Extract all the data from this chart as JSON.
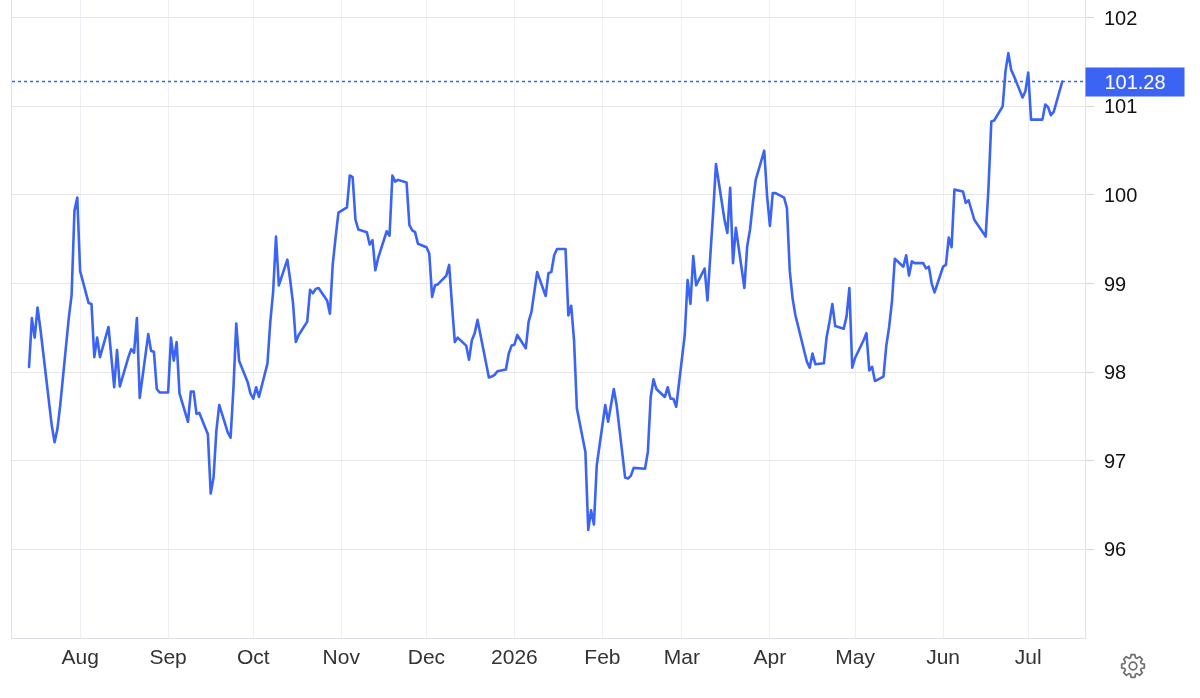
{
  "chart_data": {
    "type": "line",
    "x": [
      "2025-07-14",
      "2025-07-15",
      "2025-07-16",
      "2025-07-17",
      "2025-07-18",
      "2025-07-22",
      "2025-07-23",
      "2025-07-24",
      "2025-07-25",
      "2025-07-28",
      "2025-07-29",
      "2025-07-30",
      "2025-07-31",
      "2025-08-01",
      "2025-08-04",
      "2025-08-05",
      "2025-08-06",
      "2025-08-07",
      "2025-08-08",
      "2025-08-11",
      "2025-08-13",
      "2025-08-14",
      "2025-08-15",
      "2025-08-18",
      "2025-08-19",
      "2025-08-20",
      "2025-08-21",
      "2025-08-22",
      "2025-08-25",
      "2025-08-26",
      "2025-08-27",
      "2025-08-28",
      "2025-08-29",
      "2025-09-01",
      "2025-09-02",
      "2025-09-03",
      "2025-09-04",
      "2025-09-05",
      "2025-09-08",
      "2025-09-09",
      "2025-09-10",
      "2025-09-11",
      "2025-09-12",
      "2025-09-15",
      "2025-09-16",
      "2025-09-17",
      "2025-09-18",
      "2025-09-19",
      "2025-09-22",
      "2025-09-23",
      "2025-09-24",
      "2025-09-25",
      "2025-09-26",
      "2025-09-29",
      "2025-09-30",
      "2025-10-01",
      "2025-10-02",
      "2025-10-03",
      "2025-10-06",
      "2025-10-07",
      "2025-10-08",
      "2025-10-09",
      "2025-10-10",
      "2025-10-13",
      "2025-10-14",
      "2025-10-15",
      "2025-10-16",
      "2025-10-17",
      "2025-10-20",
      "2025-10-21",
      "2025-10-22",
      "2025-10-23",
      "2025-10-24",
      "2025-10-27",
      "2025-10-28",
      "2025-10-29",
      "2025-10-30",
      "2025-10-31",
      "2025-11-03",
      "2025-11-04",
      "2025-11-05",
      "2025-11-06",
      "2025-11-07",
      "2025-11-10",
      "2025-11-11",
      "2025-11-12",
      "2025-11-13",
      "2025-11-14",
      "2025-11-17",
      "2025-11-18",
      "2025-11-19",
      "2025-11-20",
      "2025-11-21",
      "2025-11-24",
      "2025-11-25",
      "2025-11-26",
      "2025-11-27",
      "2025-11-28",
      "2025-12-01",
      "2025-12-02",
      "2025-12-03",
      "2025-12-04",
      "2025-12-05",
      "2025-12-08",
      "2025-12-09",
      "2025-12-10",
      "2025-12-11",
      "2025-12-12",
      "2025-12-15",
      "2025-12-16",
      "2025-12-17",
      "2025-12-18",
      "2025-12-19",
      "2025-12-23",
      "2025-12-24",
      "2025-12-25",
      "2025-12-26",
      "2025-12-29",
      "2025-12-30",
      "2025-12-31",
      "2026-01-01",
      "2026-01-02",
      "2026-01-05",
      "2026-01-06",
      "2026-01-07",
      "2026-01-09",
      "2026-01-12",
      "2026-01-13",
      "2026-01-14",
      "2026-01-15",
      "2026-01-16",
      "2026-01-19",
      "2026-01-20",
      "2026-01-21",
      "2026-01-22",
      "2026-01-23",
      "2026-01-26",
      "2026-01-27",
      "2026-01-28",
      "2026-01-29",
      "2026-01-30",
      "2026-02-02",
      "2026-02-03",
      "2026-02-05",
      "2026-02-06",
      "2026-02-09",
      "2026-02-10",
      "2026-02-11",
      "2026-02-12",
      "2026-02-16",
      "2026-02-17",
      "2026-02-18",
      "2026-02-19",
      "2026-02-20",
      "2026-02-23",
      "2026-02-24",
      "2026-02-25",
      "2026-02-26",
      "2026-02-27",
      "2026-03-02",
      "2026-03-03",
      "2026-03-04",
      "2026-03-05",
      "2026-03-06",
      "2026-03-09",
      "2026-03-10",
      "2026-03-11",
      "2026-03-12",
      "2026-03-13",
      "2026-03-16",
      "2026-03-17",
      "2026-03-18",
      "2026-03-19",
      "2026-03-20",
      "2026-03-23",
      "2026-03-24",
      "2026-03-25",
      "2026-03-26",
      "2026-03-27",
      "2026-03-30",
      "2026-03-31",
      "2026-04-01",
      "2026-04-02",
      "2026-04-03",
      "2026-04-06",
      "2026-04-07",
      "2026-04-08",
      "2026-04-09",
      "2026-04-10",
      "2026-04-14",
      "2026-04-15",
      "2026-04-16",
      "2026-04-17",
      "2026-04-20",
      "2026-04-21",
      "2026-04-22",
      "2026-04-23",
      "2026-04-24",
      "2026-04-27",
      "2026-04-28",
      "2026-04-29",
      "2026-04-30",
      "2026-05-01",
      "2026-05-04",
      "2026-05-05",
      "2026-05-06",
      "2026-05-07",
      "2026-05-08",
      "2026-05-11",
      "2026-05-12",
      "2026-05-13",
      "2026-05-14",
      "2026-05-15",
      "2026-05-18",
      "2026-05-19",
      "2026-05-20",
      "2026-05-21",
      "2026-05-22",
      "2026-05-25",
      "2026-05-26",
      "2026-05-27",
      "2026-05-28",
      "2026-05-29",
      "2026-06-01",
      "2026-06-02",
      "2026-06-03",
      "2026-06-04",
      "2026-06-05",
      "2026-06-08",
      "2026-06-09",
      "2026-06-10",
      "2026-06-11",
      "2026-06-12",
      "2026-06-16",
      "2026-06-17",
      "2026-06-18",
      "2026-06-19",
      "2026-06-22",
      "2026-06-23",
      "2026-06-24",
      "2026-06-25",
      "2026-06-26",
      "2026-06-29",
      "2026-06-30",
      "2026-07-01",
      "2026-07-02",
      "2026-07-03",
      "2026-07-06",
      "2026-07-07",
      "2026-07-08",
      "2026-07-09",
      "2026-07-10",
      "2026-07-13"
    ],
    "values": [
      98.06,
      98.61,
      98.39,
      98.73,
      98.49,
      97.4,
      97.21,
      97.36,
      97.63,
      98.61,
      98.87,
      99.82,
      99.97,
      99.14,
      98.78,
      98.77,
      98.17,
      98.39,
      98.17,
      98.51,
      97.83,
      98.25,
      97.84,
      98.17,
      98.26,
      98.22,
      98.61,
      97.71,
      98.43,
      98.24,
      98.23,
      97.81,
      97.77,
      97.77,
      98.39,
      98.13,
      98.34,
      97.76,
      97.44,
      97.78,
      97.78,
      97.53,
      97.54,
      97.3,
      96.63,
      96.81,
      97.34,
      97.63,
      97.32,
      97.26,
      97.81,
      98.55,
      98.13,
      97.89,
      97.76,
      97.7,
      97.83,
      97.72,
      98.1,
      98.57,
      98.91,
      99.53,
      98.98,
      99.27,
      99.04,
      98.78,
      98.34,
      98.42,
      98.57,
      98.93,
      98.89,
      98.94,
      98.95,
      98.81,
      98.66,
      99.22,
      99.52,
      99.8,
      99.86,
      100.22,
      100.2,
      99.72,
      99.61,
      99.58,
      99.44,
      99.49,
      99.15,
      99.29,
      99.59,
      99.54,
      100.22,
      100.15,
      100.17,
      100.14,
      99.66,
      99.6,
      99.58,
      99.45,
      99.41,
      99.34,
      98.85,
      98.98,
      98.99,
      99.09,
      99.21,
      98.76,
      98.34,
      98.39,
      98.3,
      98.14,
      98.36,
      98.44,
      98.59,
      97.94,
      97.95,
      97.97,
      98.01,
      98.03,
      98.21,
      98.3,
      98.31,
      98.42,
      98.27,
      98.57,
      98.68,
      99.13,
      98.86,
      99.12,
      99.13,
      99.32,
      99.39,
      99.39,
      98.64,
      98.75,
      98.36,
      97.59,
      97.1,
      96.22,
      96.44,
      96.28,
      96.95,
      97.63,
      97.44,
      97.81,
      97.63,
      96.81,
      96.8,
      96.83,
      96.92,
      96.91,
      97.1,
      97.72,
      97.92,
      97.81,
      97.72,
      97.83,
      97.7,
      97.7,
      97.61,
      98.42,
      99.04,
      98.77,
      99.31,
      98.98,
      99.17,
      98.81,
      99.31,
      99.8,
      100.35,
      99.72,
      99.57,
      100.08,
      99.23,
      99.63,
      98.95,
      99.42,
      99.61,
      99.91,
      100.17,
      100.5,
      99.99,
      99.65,
      100.02,
      100.02,
      99.97,
      99.85,
      99.14,
      98.83,
      98.64,
      98.12,
      98.05,
      98.21,
      98.09,
      98.1,
      98.4,
      98.57,
      98.77,
      98.52,
      98.49,
      98.63,
      98.95,
      98.05,
      98.16,
      98.36,
      98.44,
      98.02,
      98.06,
      97.9,
      97.95,
      98.3,
      98.51,
      98.8,
      99.28,
      99.19,
      99.32,
      99.09,
      99.25,
      99.23,
      99.23,
      99.17,
      99.19,
      99.0,
      98.9,
      99.19,
      99.21,
      99.52,
      99.41,
      100.06,
      100.04,
      99.91,
      99.94,
      99.83,
      99.72,
      99.53,
      100.08,
      100.83,
      100.84,
      101.0,
      101.4,
      101.6,
      101.41,
      101.34,
      101.1,
      101.17,
      101.38,
      100.85,
      100.85,
      100.85,
      101.02,
      100.99,
      100.9,
      100.94,
      101.28
    ],
    "color": "#3b64f4",
    "xlim": [
      "2025-07-08",
      "2026-07-21"
    ],
    "xticks": [
      {
        "value": "2025-08-01",
        "label": "Aug"
      },
      {
        "value": "2025-09-01",
        "label": "Sep"
      },
      {
        "value": "2025-10-01",
        "label": "Oct"
      },
      {
        "value": "2025-11-01",
        "label": "Nov"
      },
      {
        "value": "2025-12-01",
        "label": "Dec"
      },
      {
        "value": "2026-01-01",
        "label": "2026"
      },
      {
        "value": "2026-02-01",
        "label": "Feb"
      },
      {
        "value": "2026-03-01",
        "label": "Mar"
      },
      {
        "value": "2026-04-01",
        "label": "Apr"
      },
      {
        "value": "2026-05-01",
        "label": "May"
      },
      {
        "value": "2026-06-01",
        "label": "Jun"
      },
      {
        "value": "2026-07-01",
        "label": "Jul"
      }
    ],
    "ylim": [
      95,
      102.2
    ],
    "yticks": [
      96,
      97,
      98,
      99,
      100,
      101,
      102
    ],
    "grid": true,
    "ref_lines": [
      {
        "axis": "y",
        "value": 101.28,
        "label": "101.28",
        "color": "#3b64f4",
        "line_style": "dotted"
      }
    ]
  }
}
